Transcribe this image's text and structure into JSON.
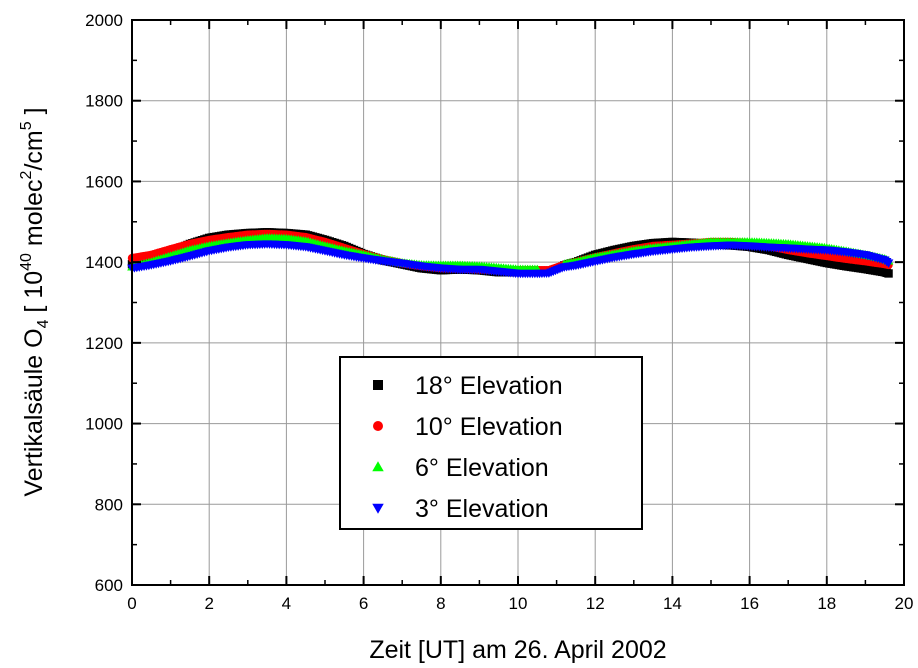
{
  "chart_data": {
    "type": "scatter",
    "xlabel": "Zeit [UT] am 26. April 2002",
    "ylabel": {
      "prefix": "Vertikalsäule O",
      "sub": "4",
      "open": " [ 10",
      "sup1": "40",
      "mid": " molec",
      "sup2": "2",
      "mid2": "/cm",
      "sup3": "5",
      "close": " ]"
    },
    "xlim": [
      0,
      20
    ],
    "ylim": [
      600,
      2000
    ],
    "xticks": [
      "0",
      "2",
      "4",
      "6",
      "8",
      "10",
      "12",
      "14",
      "16",
      "18",
      "20"
    ],
    "yticks": [
      "600",
      "800",
      "1000",
      "1200",
      "1400",
      "1600",
      "1800",
      "2000"
    ],
    "grid": true,
    "legend_position": "center",
    "series": [
      {
        "name": "18° Elevation",
        "marker": "square",
        "color": "#000000",
        "points": [
          [
            0.0,
            1395
          ],
          [
            0.5,
            1408
          ],
          [
            1.0,
            1425
          ],
          [
            1.5,
            1445
          ],
          [
            2.0,
            1460
          ],
          [
            2.5,
            1468
          ],
          [
            3.0,
            1472
          ],
          [
            3.5,
            1474
          ],
          [
            4.0,
            1472
          ],
          [
            4.5,
            1468
          ],
          [
            5.0,
            1455
          ],
          [
            5.5,
            1440
          ],
          [
            6.0,
            1420
          ],
          [
            6.5,
            1405
          ],
          [
            7.0,
            1395
          ],
          [
            7.5,
            1385
          ],
          [
            8.0,
            1380
          ],
          [
            8.5,
            1382
          ],
          [
            9.0,
            1380
          ],
          [
            9.5,
            1375
          ],
          [
            10.0,
            1375
          ],
          [
            10.5,
            1377
          ],
          [
            11.2,
            1392
          ],
          [
            11.5,
            1400
          ],
          [
            12.0,
            1418
          ],
          [
            12.5,
            1430
          ],
          [
            13.0,
            1440
          ],
          [
            13.5,
            1447
          ],
          [
            14.0,
            1450
          ],
          [
            14.5,
            1448
          ],
          [
            15.0,
            1445
          ],
          [
            15.5,
            1442
          ],
          [
            16.0,
            1438
          ],
          [
            16.5,
            1430
          ],
          [
            17.0,
            1418
          ],
          [
            17.5,
            1408
          ],
          [
            18.0,
            1398
          ],
          [
            18.5,
            1390
          ],
          [
            19.0,
            1383
          ],
          [
            19.5,
            1375
          ],
          [
            19.6,
            1372
          ]
        ]
      },
      {
        "name": "10° Elevation",
        "marker": "circle",
        "color": "#ff0000",
        "points": [
          [
            0.0,
            1410
          ],
          [
            0.5,
            1418
          ],
          [
            1.0,
            1432
          ],
          [
            1.5,
            1445
          ],
          [
            2.0,
            1455
          ],
          [
            2.5,
            1462
          ],
          [
            3.0,
            1468
          ],
          [
            3.5,
            1470
          ],
          [
            4.0,
            1468
          ],
          [
            4.5,
            1462
          ],
          [
            5.0,
            1450
          ],
          [
            5.5,
            1435
          ],
          [
            6.0,
            1420
          ],
          [
            6.5,
            1407
          ],
          [
            7.0,
            1397
          ],
          [
            7.5,
            1390
          ],
          [
            8.0,
            1385
          ],
          [
            8.5,
            1384
          ],
          [
            9.0,
            1382
          ],
          [
            9.5,
            1380
          ],
          [
            10.0,
            1380
          ],
          [
            10.5,
            1380
          ],
          [
            10.8,
            1380
          ],
          [
            11.2,
            1393
          ],
          [
            11.5,
            1400
          ],
          [
            12.0,
            1412
          ],
          [
            12.5,
            1422
          ],
          [
            13.0,
            1432
          ],
          [
            13.5,
            1440
          ],
          [
            14.0,
            1443
          ],
          [
            14.5,
            1446
          ],
          [
            15.0,
            1450
          ],
          [
            15.5,
            1450
          ],
          [
            16.0,
            1447
          ],
          [
            16.5,
            1440
          ],
          [
            17.0,
            1430
          ],
          [
            17.5,
            1422
          ],
          [
            18.0,
            1415
          ],
          [
            18.5,
            1408
          ],
          [
            19.0,
            1402
          ],
          [
            19.5,
            1395
          ],
          [
            19.6,
            1393
          ]
        ]
      },
      {
        "name": "6° Elevation",
        "marker": "triangle-up",
        "color": "#00ff00",
        "points": [
          [
            0.0,
            1388
          ],
          [
            0.5,
            1400
          ],
          [
            1.0,
            1415
          ],
          [
            1.5,
            1430
          ],
          [
            2.0,
            1440
          ],
          [
            2.5,
            1448
          ],
          [
            3.0,
            1455
          ],
          [
            3.5,
            1460
          ],
          [
            4.0,
            1458
          ],
          [
            4.5,
            1452
          ],
          [
            5.0,
            1440
          ],
          [
            5.5,
            1428
          ],
          [
            6.0,
            1418
          ],
          [
            6.5,
            1407
          ],
          [
            7.0,
            1398
          ],
          [
            7.5,
            1393
          ],
          [
            8.0,
            1392
          ],
          [
            8.5,
            1392
          ],
          [
            9.0,
            1390
          ],
          [
            9.5,
            1386
          ],
          [
            10.0,
            1382
          ],
          [
            10.5,
            1382
          ],
          [
            11.2,
            1395
          ],
          [
            11.5,
            1400
          ],
          [
            12.0,
            1412
          ],
          [
            12.5,
            1420
          ],
          [
            13.0,
            1428
          ],
          [
            13.5,
            1435
          ],
          [
            14.0,
            1440
          ],
          [
            14.5,
            1445
          ],
          [
            15.0,
            1450
          ],
          [
            15.5,
            1450
          ],
          [
            16.0,
            1450
          ],
          [
            16.5,
            1448
          ],
          [
            17.0,
            1445
          ],
          [
            17.5,
            1440
          ],
          [
            18.0,
            1435
          ],
          [
            18.5,
            1427
          ],
          [
            19.0,
            1418
          ],
          [
            19.5,
            1408
          ],
          [
            19.6,
            1403
          ]
        ]
      },
      {
        "name": "3° Elevation",
        "marker": "triangle-down",
        "color": "#0000ff",
        "points": [
          [
            0.0,
            1385
          ],
          [
            0.5,
            1393
          ],
          [
            1.0,
            1403
          ],
          [
            1.5,
            1415
          ],
          [
            2.0,
            1428
          ],
          [
            2.5,
            1437
          ],
          [
            3.0,
            1443
          ],
          [
            3.5,
            1445
          ],
          [
            4.0,
            1443
          ],
          [
            4.5,
            1438
          ],
          [
            5.0,
            1428
          ],
          [
            5.5,
            1418
          ],
          [
            6.0,
            1410
          ],
          [
            6.5,
            1403
          ],
          [
            7.0,
            1397
          ],
          [
            7.5,
            1390
          ],
          [
            8.0,
            1385
          ],
          [
            8.5,
            1382
          ],
          [
            9.0,
            1382
          ],
          [
            9.5,
            1377
          ],
          [
            10.0,
            1372
          ],
          [
            10.5,
            1372
          ],
          [
            10.8,
            1373
          ],
          [
            11.2,
            1388
          ],
          [
            11.5,
            1392
          ],
          [
            12.0,
            1402
          ],
          [
            12.5,
            1412
          ],
          [
            13.0,
            1420
          ],
          [
            13.5,
            1427
          ],
          [
            14.0,
            1432
          ],
          [
            14.5,
            1437
          ],
          [
            15.0,
            1440
          ],
          [
            15.5,
            1442
          ],
          [
            16.0,
            1440
          ],
          [
            16.5,
            1437
          ],
          [
            17.0,
            1435
          ],
          [
            17.5,
            1432
          ],
          [
            18.0,
            1430
          ],
          [
            18.5,
            1425
          ],
          [
            19.0,
            1418
          ],
          [
            19.5,
            1405
          ],
          [
            19.6,
            1398
          ]
        ]
      }
    ]
  }
}
